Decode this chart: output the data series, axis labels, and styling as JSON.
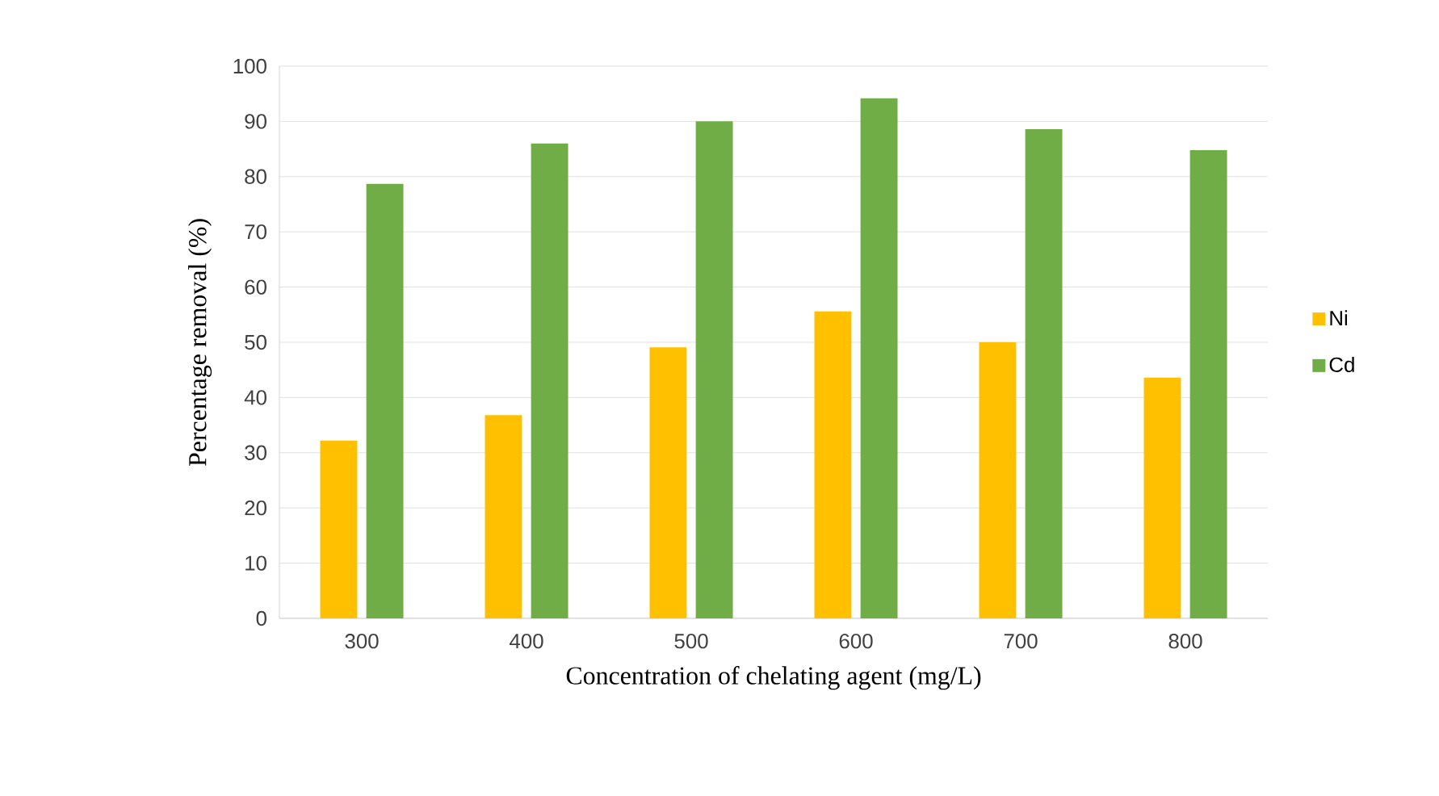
{
  "chart_data": {
    "type": "bar",
    "xlabel": "Concentration of chelating agent (mg/L)",
    "ylabel": "Percentage removal (%)",
    "categories": [
      "300",
      "400",
      "500",
      "600",
      "700",
      "800"
    ],
    "series": [
      {
        "name": "Ni",
        "color": "#ffc000",
        "values": [
          32.2,
          36.8,
          49.1,
          55.6,
          50.0,
          43.6
        ]
      },
      {
        "name": "Cd",
        "color": "#70ad47",
        "values": [
          78.7,
          86.0,
          90.0,
          94.2,
          88.6,
          84.8
        ]
      }
    ],
    "ylim": [
      0,
      100
    ],
    "yticks": [
      0,
      10,
      20,
      30,
      40,
      50,
      60,
      70,
      80,
      90,
      100
    ],
    "grid": "y",
    "legend": "right"
  }
}
